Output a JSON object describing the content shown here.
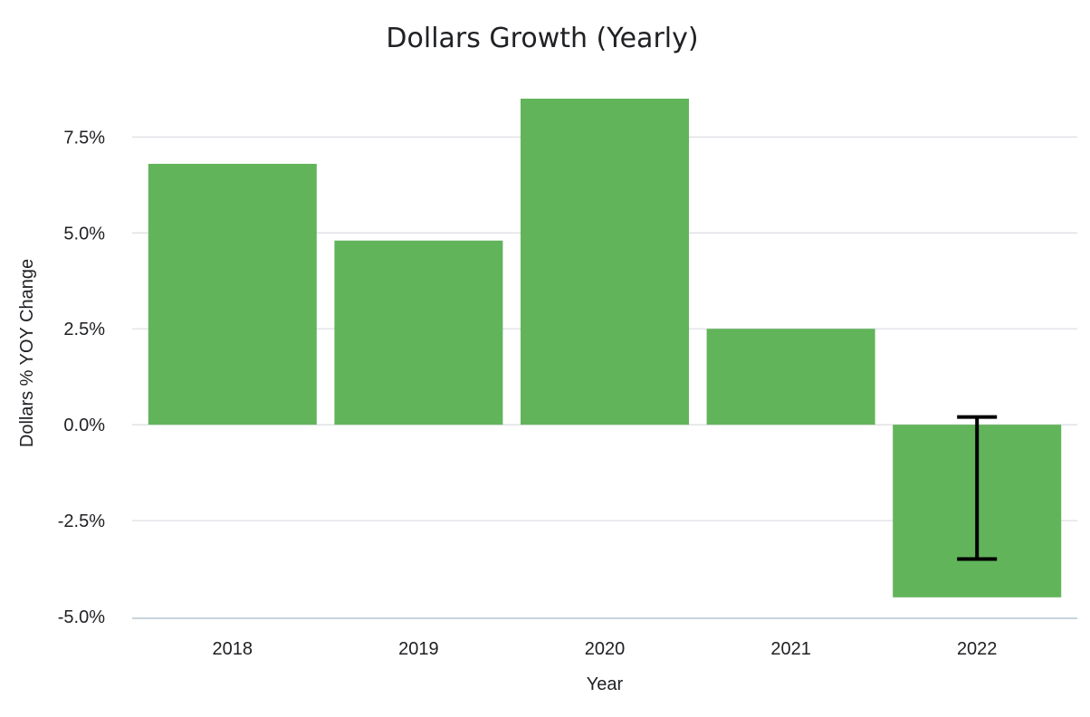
{
  "chart_data": {
    "type": "bar",
    "title": "Dollars Growth (Yearly)",
    "xlabel": "Year",
    "ylabel": "Dollars % YOY Change",
    "categories": [
      "2018",
      "2019",
      "2020",
      "2021",
      "2022"
    ],
    "values": [
      6.8,
      4.8,
      8.5,
      2.5,
      -4.5
    ],
    "error_bar": {
      "category": "2022",
      "low": -3.5,
      "high": 0.2
    },
    "ylim": [
      -5.0,
      8.9
    ],
    "yticks": [
      -5.0,
      -2.5,
      0.0,
      2.5,
      5.0,
      7.5
    ],
    "ytick_labels": [
      "-5.0%",
      "-2.5%",
      "0.0%",
      "2.5%",
      "5.0%",
      "7.5%"
    ],
    "grid": true,
    "legend": "none",
    "bar_color": "#62b45a",
    "error_bar_color": "#000000"
  }
}
